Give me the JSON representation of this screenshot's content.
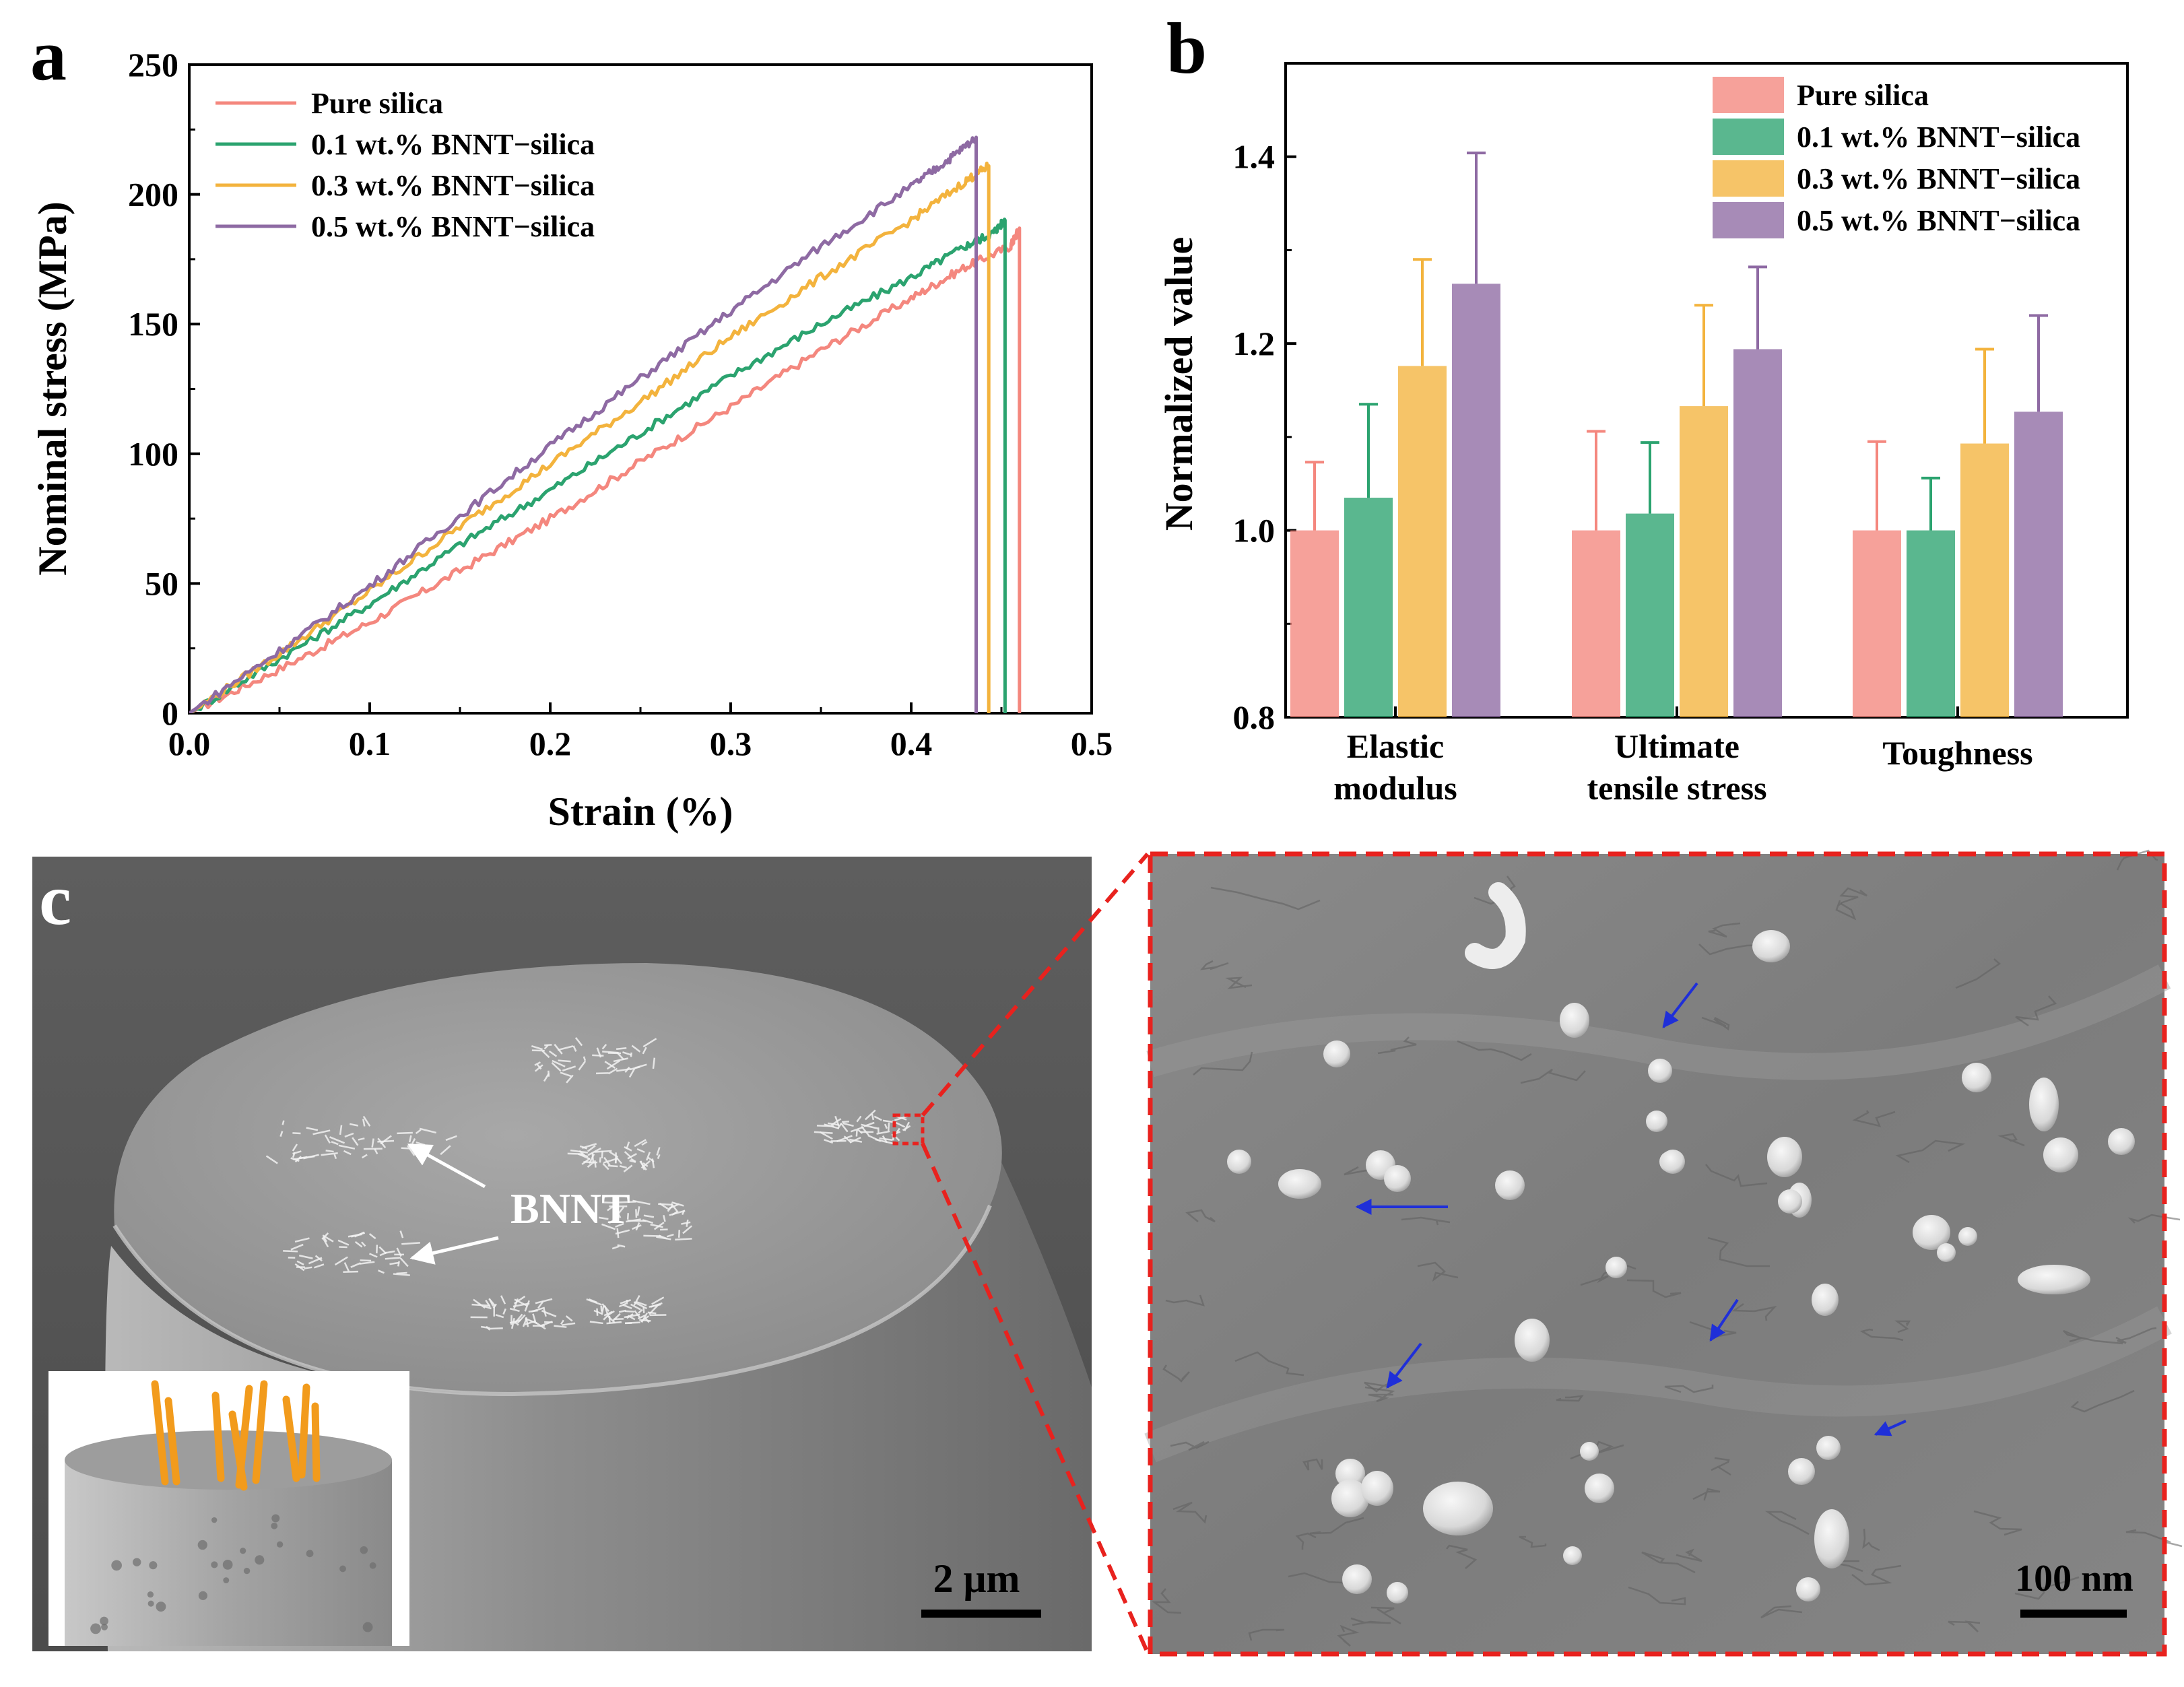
{
  "colors": {
    "pure": "#F4877E",
    "bnnt01": "#2BA36F",
    "bnnt03": "#F3B33D",
    "bnnt05": "#8E6AA3",
    "highlight_box": "#E8221E",
    "arrow_blue": "#1F2FD8",
    "nanotube_orange": "#F29B1C"
  },
  "panels": {
    "a": {
      "letter": "a"
    },
    "b": {
      "letter": "b"
    },
    "c": {
      "letter": "c"
    }
  },
  "chart_data": [
    {
      "id": "a",
      "type": "line",
      "title": "",
      "xlabel": "Strain (%)",
      "ylabel": "Nominal stress (MPa)",
      "xlim": [
        0.0,
        0.5
      ],
      "ylim": [
        0,
        250
      ],
      "xticks": [
        "0.0",
        "0.1",
        "0.2",
        "0.3",
        "0.4",
        "0.5"
      ],
      "yticks": [
        "0",
        "50",
        "100",
        "150",
        "200",
        "250"
      ],
      "legend_position": "top-left",
      "series": [
        {
          "name": "Pure silica",
          "color_key": "pure",
          "x": [
            0.0,
            0.05,
            0.1,
            0.15,
            0.2,
            0.25,
            0.3,
            0.35,
            0.4,
            0.43,
            0.455,
            0.46,
            0.46
          ],
          "y": [
            0,
            17,
            35,
            55,
            75,
            97,
            118,
            140,
            160,
            172,
            180,
            187,
            0
          ]
        },
        {
          "name": "0.1 wt.% BNNT−silica",
          "color_key": "bnnt01",
          "x": [
            0.0,
            0.05,
            0.1,
            0.15,
            0.2,
            0.25,
            0.3,
            0.35,
            0.4,
            0.43,
            0.445,
            0.452,
            0.452
          ],
          "y": [
            0,
            21,
            42,
            65,
            86,
            108,
            130,
            150,
            168,
            180,
            185,
            190,
            0
          ]
        },
        {
          "name": "0.3 wt.% BNNT−silica",
          "color_key": "bnnt03",
          "x": [
            0.0,
            0.05,
            0.1,
            0.15,
            0.2,
            0.25,
            0.3,
            0.35,
            0.4,
            0.43,
            0.443,
            0.443
          ],
          "y": [
            0,
            23,
            47,
            72,
            96,
            120,
            145,
            168,
            190,
            205,
            211,
            0
          ]
        },
        {
          "name": "0.5 wt.% BNNT−silica",
          "color_key": "bnnt05",
          "x": [
            0.0,
            0.05,
            0.1,
            0.15,
            0.2,
            0.25,
            0.3,
            0.35,
            0.4,
            0.42,
            0.436,
            0.436
          ],
          "y": [
            0,
            24,
            49,
            76,
            103,
            129,
            155,
            180,
            203,
            213,
            222,
            0
          ]
        }
      ]
    },
    {
      "id": "b",
      "type": "bar",
      "title": "",
      "xlabel": "",
      "ylabel": "Normalized value",
      "ylim": [
        0.8,
        1.5
      ],
      "yticks": [
        "0.8",
        "1.0",
        "1.2",
        "1.4"
      ],
      "categories": [
        "Elastic modulus",
        "Ultimate tensile stress",
        "Toughness"
      ],
      "category_lines": [
        [
          "Elastic",
          "modulus"
        ],
        [
          "Ultimate",
          "tensile stress"
        ],
        [
          "Toughness"
        ]
      ],
      "legend_position": "top-right",
      "series": [
        {
          "name": "Pure silica",
          "color_key": "pure",
          "values": [
            1.0,
            1.0,
            1.0
          ],
          "errors": [
            0.073,
            0.106,
            0.095
          ]
        },
        {
          "name": "0.1 wt.% BNNT−silica",
          "color_key": "bnnt01",
          "values": [
            1.035,
            1.018,
            1.0
          ],
          "errors": [
            0.1,
            0.076,
            0.056
          ]
        },
        {
          "name": "0.3 wt.% BNNT−silica",
          "color_key": "bnnt03",
          "values": [
            1.176,
            1.133,
            1.093
          ],
          "errors": [
            0.114,
            0.108,
            0.101
          ]
        },
        {
          "name": "0.5 wt.% BNNT−silica",
          "color_key": "bnnt05",
          "values": [
            1.264,
            1.194,
            1.127
          ],
          "errors": [
            0.14,
            0.088,
            0.103
          ]
        }
      ]
    }
  ],
  "micrographs": {
    "left": {
      "annotation": "BNNT",
      "scale_bar": "2 μm"
    },
    "right": {
      "scale_bar": "100 nm"
    }
  }
}
